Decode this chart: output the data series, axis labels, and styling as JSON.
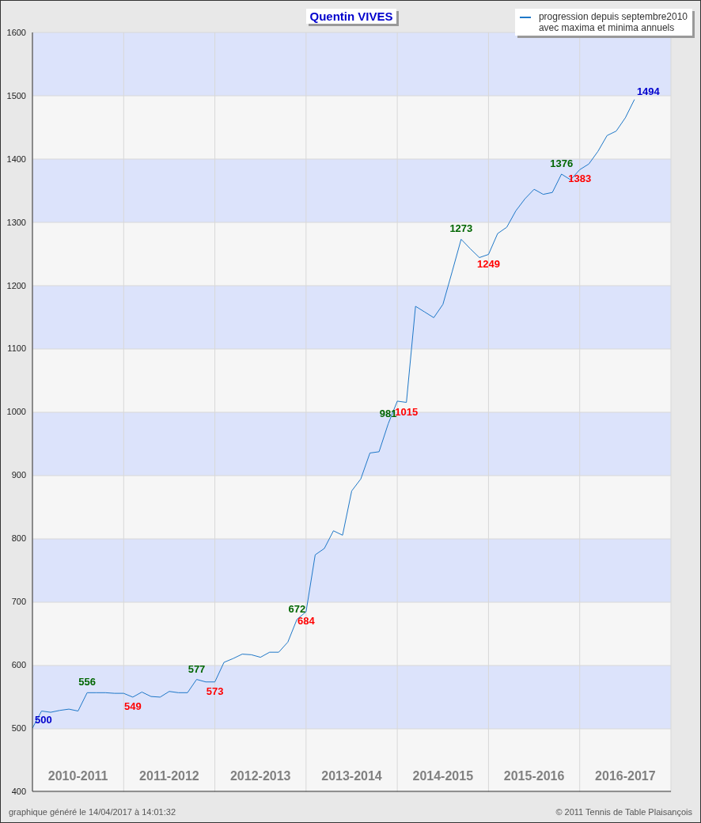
{
  "chart_data": {
    "type": "line",
    "title": "Quentin VIVES",
    "categories": [
      null,
      null,
      null,
      null,
      null,
      "2010-2011",
      null,
      null,
      null,
      null,
      null,
      null,
      null,
      null,
      null,
      "2011-2012",
      null,
      null,
      null,
      null,
      null,
      null,
      null,
      null,
      null,
      "2012-2013",
      null,
      null,
      null,
      null,
      null,
      null,
      null,
      null,
      null,
      "2013-2014",
      null,
      null,
      null,
      null,
      null,
      null,
      null,
      null,
      null,
      "2014-2015",
      null,
      null,
      null,
      null,
      null,
      null,
      null,
      null,
      null,
      "2015-2016",
      null,
      null,
      null,
      null,
      null,
      null,
      null,
      null,
      null,
      "2016-2017",
      null,
      null,
      null,
      null,
      null
    ],
    "series": [
      {
        "name": "progression depuis septembre2010\navec maxima et minima annuels",
        "color": "#1f78c8",
        "values": [
          500,
          527,
          525,
          528,
          530,
          527,
          556,
          556,
          556,
          555,
          555,
          549,
          557,
          550,
          549,
          558,
          556,
          556,
          577,
          573,
          573,
          604,
          610,
          617,
          616,
          612,
          620,
          620,
          636,
          672,
          684,
          774,
          784,
          812,
          805,
          875,
          894,
          935,
          937,
          981,
          1017,
          1015,
          1167,
          1158,
          1149,
          1170,
          1221,
          1273,
          1258,
          1244,
          1249,
          1282,
          1292,
          1318,
          1337,
          1352,
          1344,
          1347,
          1376,
          1367,
          1383,
          1392,
          1412,
          1437,
          1444,
          1465,
          1494,
          null,
          null,
          null,
          null
        ],
        "value_labels": [
          "500",
          null,
          null,
          null,
          null,
          null,
          "556",
          null,
          null,
          null,
          null,
          "549",
          null,
          null,
          null,
          null,
          null,
          null,
          "577",
          null,
          "573",
          null,
          null,
          null,
          null,
          null,
          null,
          null,
          null,
          "672",
          "684",
          null,
          null,
          null,
          null,
          null,
          null,
          null,
          null,
          "981",
          null,
          "1015",
          null,
          null,
          null,
          null,
          null,
          "1273",
          null,
          null,
          "1249",
          null,
          null,
          null,
          null,
          null,
          null,
          null,
          "1376",
          null,
          "1383",
          null,
          null,
          null,
          null,
          null,
          "1494",
          null,
          null,
          null,
          null
        ]
      }
    ],
    "ylim": [
      400,
      1600
    ],
    "yticks": [
      400,
      500,
      600,
      700,
      800,
      900,
      1000,
      1100,
      1200,
      1300,
      1400,
      1500,
      1600
    ],
    "grid": true,
    "legend": "top right",
    "marker": "none",
    "line_style": "solid",
    "annotations": [
      "graphique généré le 14/04/2017 à 14:01:32",
      "© 2011 Tennis de Table Plaisançois"
    ]
  }
}
